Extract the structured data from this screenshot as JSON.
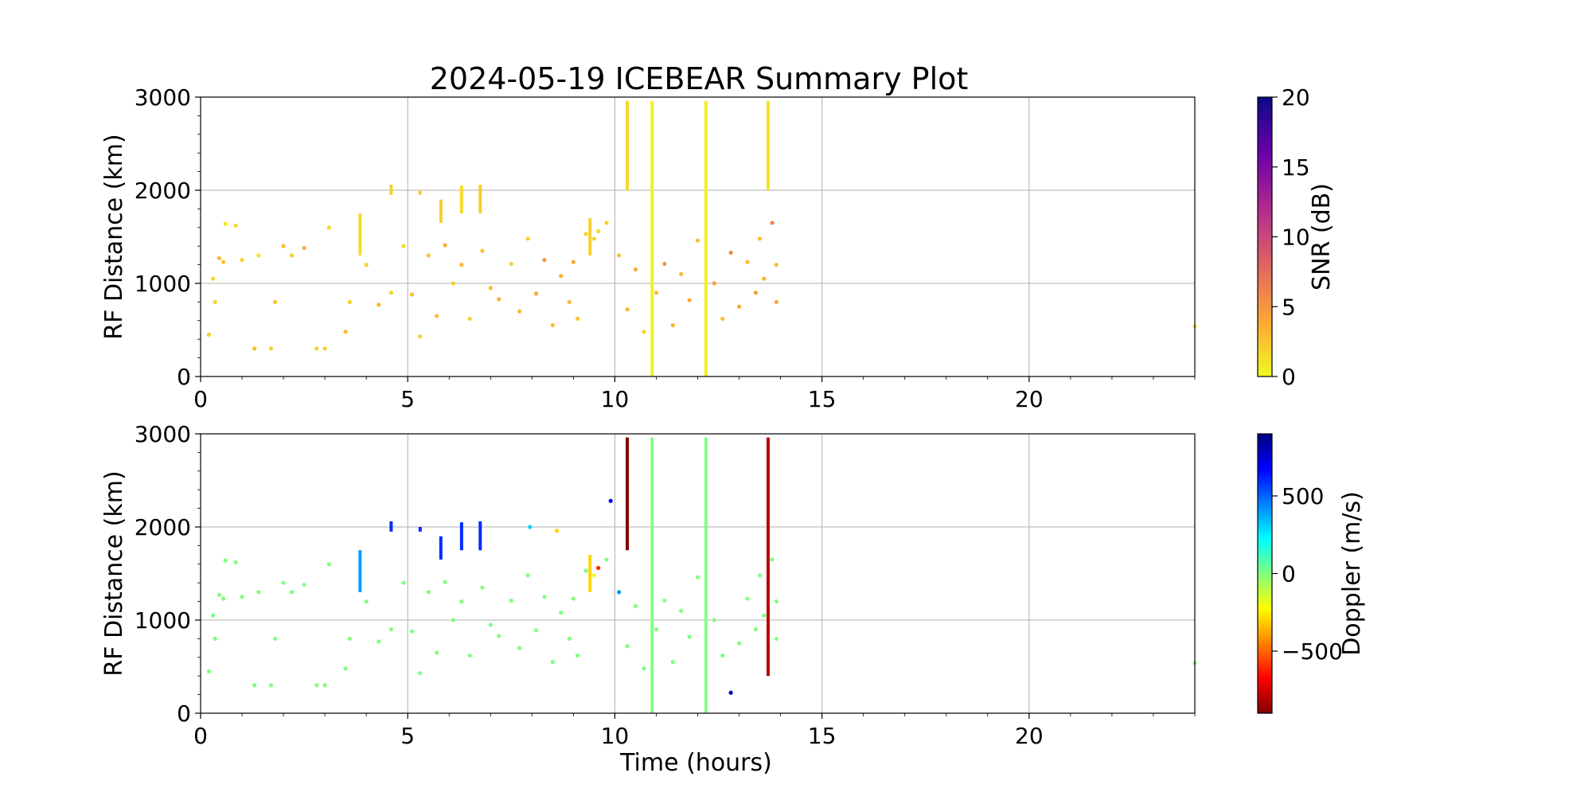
{
  "figure": {
    "title": "2024-05-19 ICEBEAR Summary Plot"
  },
  "chart_data": [
    {
      "type": "scatter",
      "name": "snr",
      "xlabel": "",
      "ylabel": "RF Distance (km)",
      "xlim": [
        0,
        24
      ],
      "ylim": [
        0,
        3000
      ],
      "xticks": [
        0,
        5,
        10,
        15,
        20
      ],
      "yticks": [
        0,
        1000,
        2000,
        3000
      ],
      "grid": true,
      "colorbar": {
        "label": "SNR (dB)",
        "range": [
          0,
          20
        ],
        "ticks": [
          0,
          5,
          10,
          15,
          20
        ],
        "colormap": "plasma_r",
        "colors": [
          "#f0f921",
          "#fca636",
          "#e16462",
          "#b12a90",
          "#6a00a8",
          "#0d0887"
        ]
      },
      "points": [
        {
          "x": 0.2,
          "y": 450,
          "c": 2
        },
        {
          "x": 0.3,
          "y": 1050,
          "c": 1.5
        },
        {
          "x": 0.35,
          "y": 800,
          "c": 2
        },
        {
          "x": 0.45,
          "y": 1270,
          "c": 3
        },
        {
          "x": 0.55,
          "y": 1230,
          "c": 2.5
        },
        {
          "x": 0.6,
          "y": 1640,
          "c": 1
        },
        {
          "x": 0.85,
          "y": 1620,
          "c": 1.5
        },
        {
          "x": 1.0,
          "y": 1250,
          "c": 2
        },
        {
          "x": 1.3,
          "y": 300,
          "c": 3
        },
        {
          "x": 1.4,
          "y": 1300,
          "c": 1
        },
        {
          "x": 1.7,
          "y": 300,
          "c": 2
        },
        {
          "x": 1.8,
          "y": 800,
          "c": 2.5
        },
        {
          "x": 2.0,
          "y": 1400,
          "c": 3
        },
        {
          "x": 2.2,
          "y": 1300,
          "c": 2
        },
        {
          "x": 2.5,
          "y": 1380,
          "c": 4
        },
        {
          "x": 2.8,
          "y": 300,
          "c": 2
        },
        {
          "x": 3.0,
          "y": 300,
          "c": 2
        },
        {
          "x": 3.1,
          "y": 1600,
          "c": 1.5
        },
        {
          "x": 3.5,
          "y": 480,
          "c": 3
        },
        {
          "x": 3.6,
          "y": 800,
          "c": 2
        },
        {
          "x": 4.0,
          "y": 1200,
          "c": 2
        },
        {
          "x": 4.3,
          "y": 770,
          "c": 3.5
        },
        {
          "x": 4.6,
          "y": 900,
          "c": 2
        },
        {
          "x": 4.9,
          "y": 1400,
          "c": 1.5
        },
        {
          "x": 5.1,
          "y": 880,
          "c": 3
        },
        {
          "x": 5.3,
          "y": 430,
          "c": 2
        },
        {
          "x": 5.5,
          "y": 1300,
          "c": 2.5
        },
        {
          "x": 5.7,
          "y": 650,
          "c": 3
        },
        {
          "x": 5.9,
          "y": 1410,
          "c": 4
        },
        {
          "x": 6.1,
          "y": 1000,
          "c": 2
        },
        {
          "x": 6.3,
          "y": 1200,
          "c": 3
        },
        {
          "x": 6.5,
          "y": 620,
          "c": 2
        },
        {
          "x": 6.8,
          "y": 1350,
          "c": 2.5
        },
        {
          "x": 7.0,
          "y": 950,
          "c": 3
        },
        {
          "x": 7.2,
          "y": 830,
          "c": 3.5
        },
        {
          "x": 7.5,
          "y": 1210,
          "c": 2
        },
        {
          "x": 7.7,
          "y": 700,
          "c": 3
        },
        {
          "x": 7.9,
          "y": 1480,
          "c": 2
        },
        {
          "x": 8.1,
          "y": 890,
          "c": 4
        },
        {
          "x": 8.3,
          "y": 1250,
          "c": 5
        },
        {
          "x": 8.5,
          "y": 550,
          "c": 3
        },
        {
          "x": 8.7,
          "y": 1080,
          "c": 3.5
        },
        {
          "x": 8.9,
          "y": 800,
          "c": 3
        },
        {
          "x": 9.0,
          "y": 1230,
          "c": 4
        },
        {
          "x": 9.1,
          "y": 620,
          "c": 2.5
        },
        {
          "x": 9.3,
          "y": 1530,
          "c": 2
        },
        {
          "x": 9.5,
          "y": 1480,
          "c": 2
        },
        {
          "x": 9.6,
          "y": 1560,
          "c": 1.5
        },
        {
          "x": 9.8,
          "y": 1650,
          "c": 2
        },
        {
          "x": 10.1,
          "y": 1300,
          "c": 2.5
        },
        {
          "x": 10.3,
          "y": 720,
          "c": 3
        },
        {
          "x": 10.5,
          "y": 1150,
          "c": 4
        },
        {
          "x": 10.7,
          "y": 480,
          "c": 2
        },
        {
          "x": 11.0,
          "y": 900,
          "c": 3
        },
        {
          "x": 11.2,
          "y": 1210,
          "c": 5
        },
        {
          "x": 11.4,
          "y": 550,
          "c": 3.5
        },
        {
          "x": 11.6,
          "y": 1100,
          "c": 3
        },
        {
          "x": 11.8,
          "y": 820,
          "c": 4
        },
        {
          "x": 12.0,
          "y": 1460,
          "c": 3
        },
        {
          "x": 12.4,
          "y": 1000,
          "c": 4.5
        },
        {
          "x": 12.6,
          "y": 620,
          "c": 3
        },
        {
          "x": 12.8,
          "y": 1330,
          "c": 5.5
        },
        {
          "x": 13.0,
          "y": 750,
          "c": 4
        },
        {
          "x": 13.2,
          "y": 1230,
          "c": 3
        },
        {
          "x": 13.4,
          "y": 900,
          "c": 4.5
        },
        {
          "x": 13.5,
          "y": 1480,
          "c": 3
        },
        {
          "x": 13.6,
          "y": 1050,
          "c": 3.5
        },
        {
          "x": 13.8,
          "y": 1650,
          "c": 6
        },
        {
          "x": 13.9,
          "y": 1200,
          "c": 3
        },
        {
          "x": 13.9,
          "y": 800,
          "c": 4
        },
        {
          "x": 24.0,
          "y": 540,
          "c": 1
        }
      ],
      "tracks": [
        {
          "x": 3.85,
          "y0": 1300,
          "y1": 1750,
          "c": 1.5
        },
        {
          "x": 4.6,
          "y0": 1950,
          "y1": 2060,
          "c": 2
        },
        {
          "x": 5.3,
          "y0": 1950,
          "y1": 2000,
          "c": 2
        },
        {
          "x": 5.8,
          "y0": 1650,
          "y1": 1900,
          "c": 2
        },
        {
          "x": 6.3,
          "y0": 1750,
          "y1": 2050,
          "c": 1.5
        },
        {
          "x": 6.75,
          "y0": 1750,
          "y1": 2060,
          "c": 2
        },
        {
          "x": 9.4,
          "y0": 1300,
          "y1": 1700,
          "c": 2
        },
        {
          "x": 10.3,
          "y0": 2000,
          "y1": 2960,
          "c": 1.5
        },
        {
          "x": 10.9,
          "y0": 0,
          "y1": 2960,
          "c": 0.5
        },
        {
          "x": 12.2,
          "y0": 0,
          "y1": 2960,
          "c": 0.5
        },
        {
          "x": 13.7,
          "y0": 2000,
          "y1": 2960,
          "c": 1
        }
      ]
    },
    {
      "type": "scatter",
      "name": "doppler",
      "xlabel": "Time (hours)",
      "ylabel": "RF Distance (km)",
      "xlim": [
        0,
        24
      ],
      "ylim": [
        0,
        3000
      ],
      "xticks": [
        0,
        5,
        10,
        15,
        20
      ],
      "yticks": [
        0,
        1000,
        2000,
        3000
      ],
      "grid": true,
      "colorbar": {
        "label": "Doppler (m/s)",
        "range": [
          -900,
          900
        ],
        "ticks": [
          -500,
          0,
          500
        ],
        "tick_labels": [
          "−500",
          "0",
          "500"
        ],
        "colormap": "jet_r",
        "colors": [
          "#800000",
          "#ff0000",
          "#ff8000",
          "#ffff00",
          "#80ff80",
          "#00ffff",
          "#0080ff",
          "#0000ff",
          "#000080"
        ]
      },
      "points": [
        {
          "x": 0.2,
          "y": 450,
          "c": 0
        },
        {
          "x": 0.3,
          "y": 1050,
          "c": 0
        },
        {
          "x": 0.35,
          "y": 800,
          "c": 0
        },
        {
          "x": 0.45,
          "y": 1270,
          "c": 0
        },
        {
          "x": 0.55,
          "y": 1230,
          "c": 0
        },
        {
          "x": 0.6,
          "y": 1640,
          "c": 0
        },
        {
          "x": 0.85,
          "y": 1620,
          "c": 0
        },
        {
          "x": 1.0,
          "y": 1250,
          "c": 0
        },
        {
          "x": 1.3,
          "y": 300,
          "c": 0
        },
        {
          "x": 1.4,
          "y": 1300,
          "c": 0
        },
        {
          "x": 1.7,
          "y": 300,
          "c": 0
        },
        {
          "x": 1.8,
          "y": 800,
          "c": 0
        },
        {
          "x": 2.0,
          "y": 1400,
          "c": 0
        },
        {
          "x": 2.2,
          "y": 1300,
          "c": 0
        },
        {
          "x": 2.5,
          "y": 1380,
          "c": 0
        },
        {
          "x": 2.8,
          "y": 300,
          "c": 0
        },
        {
          "x": 3.0,
          "y": 300,
          "c": 0
        },
        {
          "x": 3.1,
          "y": 1600,
          "c": 0
        },
        {
          "x": 3.5,
          "y": 480,
          "c": 0
        },
        {
          "x": 3.6,
          "y": 800,
          "c": 0
        },
        {
          "x": 4.0,
          "y": 1200,
          "c": 0
        },
        {
          "x": 4.3,
          "y": 770,
          "c": 0
        },
        {
          "x": 4.6,
          "y": 900,
          "c": 0
        },
        {
          "x": 4.9,
          "y": 1400,
          "c": 0
        },
        {
          "x": 5.1,
          "y": 880,
          "c": 0
        },
        {
          "x": 5.3,
          "y": 430,
          "c": 0
        },
        {
          "x": 5.5,
          "y": 1300,
          "c": 0
        },
        {
          "x": 5.7,
          "y": 650,
          "c": 0
        },
        {
          "x": 5.9,
          "y": 1410,
          "c": 0
        },
        {
          "x": 6.1,
          "y": 1000,
          "c": 0
        },
        {
          "x": 6.3,
          "y": 1200,
          "c": 0
        },
        {
          "x": 6.5,
          "y": 620,
          "c": 0
        },
        {
          "x": 6.8,
          "y": 1350,
          "c": 0
        },
        {
          "x": 7.0,
          "y": 950,
          "c": 0
        },
        {
          "x": 7.2,
          "y": 830,
          "c": 0
        },
        {
          "x": 7.5,
          "y": 1210,
          "c": 0
        },
        {
          "x": 7.7,
          "y": 700,
          "c": 0
        },
        {
          "x": 7.9,
          "y": 1480,
          "c": 0
        },
        {
          "x": 7.95,
          "y": 2000,
          "c": 300
        },
        {
          "x": 8.1,
          "y": 890,
          "c": 0
        },
        {
          "x": 8.3,
          "y": 1250,
          "c": 0
        },
        {
          "x": 8.5,
          "y": 550,
          "c": 0
        },
        {
          "x": 8.6,
          "y": 1960,
          "c": -300
        },
        {
          "x": 8.7,
          "y": 1080,
          "c": 0
        },
        {
          "x": 8.9,
          "y": 800,
          "c": 0
        },
        {
          "x": 9.0,
          "y": 1230,
          "c": 0
        },
        {
          "x": 9.1,
          "y": 620,
          "c": 0
        },
        {
          "x": 9.3,
          "y": 1530,
          "c": 0
        },
        {
          "x": 9.5,
          "y": 1480,
          "c": -200
        },
        {
          "x": 9.6,
          "y": 1560,
          "c": -600
        },
        {
          "x": 9.8,
          "y": 1650,
          "c": 0
        },
        {
          "x": 9.9,
          "y": 2280,
          "c": 700
        },
        {
          "x": 10.1,
          "y": 1300,
          "c": 400
        },
        {
          "x": 10.3,
          "y": 720,
          "c": 0
        },
        {
          "x": 10.5,
          "y": 1150,
          "c": 0
        },
        {
          "x": 10.7,
          "y": 480,
          "c": 0
        },
        {
          "x": 11.0,
          "y": 900,
          "c": 0
        },
        {
          "x": 11.2,
          "y": 1210,
          "c": 0
        },
        {
          "x": 11.4,
          "y": 550,
          "c": 0
        },
        {
          "x": 11.6,
          "y": 1100,
          "c": 0
        },
        {
          "x": 11.8,
          "y": 820,
          "c": 0
        },
        {
          "x": 12.0,
          "y": 1460,
          "c": 0
        },
        {
          "x": 12.4,
          "y": 1000,
          "c": 0
        },
        {
          "x": 12.6,
          "y": 620,
          "c": 0
        },
        {
          "x": 12.8,
          "y": 220,
          "c": 800
        },
        {
          "x": 13.0,
          "y": 750,
          "c": 0
        },
        {
          "x": 13.2,
          "y": 1230,
          "c": 0
        },
        {
          "x": 13.4,
          "y": 900,
          "c": 0
        },
        {
          "x": 13.5,
          "y": 1480,
          "c": 0
        },
        {
          "x": 13.6,
          "y": 1050,
          "c": 0
        },
        {
          "x": 13.8,
          "y": 1650,
          "c": 0
        },
        {
          "x": 13.9,
          "y": 1200,
          "c": 0
        },
        {
          "x": 13.9,
          "y": 800,
          "c": 0
        },
        {
          "x": 24.0,
          "y": 540,
          "c": 0
        }
      ],
      "tracks": [
        {
          "x": 3.85,
          "y0": 1300,
          "y1": 1750,
          "c": 400
        },
        {
          "x": 4.6,
          "y0": 1950,
          "y1": 2060,
          "c": 600
        },
        {
          "x": 5.3,
          "y0": 1950,
          "y1": 2000,
          "c": 600
        },
        {
          "x": 5.8,
          "y0": 1650,
          "y1": 1900,
          "c": 600
        },
        {
          "x": 6.3,
          "y0": 1750,
          "y1": 2050,
          "c": 600
        },
        {
          "x": 6.75,
          "y0": 1750,
          "y1": 2060,
          "c": 600
        },
        {
          "x": 9.4,
          "y0": 1300,
          "y1": 1700,
          "c": -300
        },
        {
          "x": 10.3,
          "y0": 1750,
          "y1": 2960,
          "c": -900
        },
        {
          "x": 10.9,
          "y0": 0,
          "y1": 2960,
          "c": 0
        },
        {
          "x": 12.2,
          "y0": 0,
          "y1": 2960,
          "c": 0
        },
        {
          "x": 13.7,
          "y0": 400,
          "y1": 2960,
          "c": -800
        }
      ]
    }
  ]
}
